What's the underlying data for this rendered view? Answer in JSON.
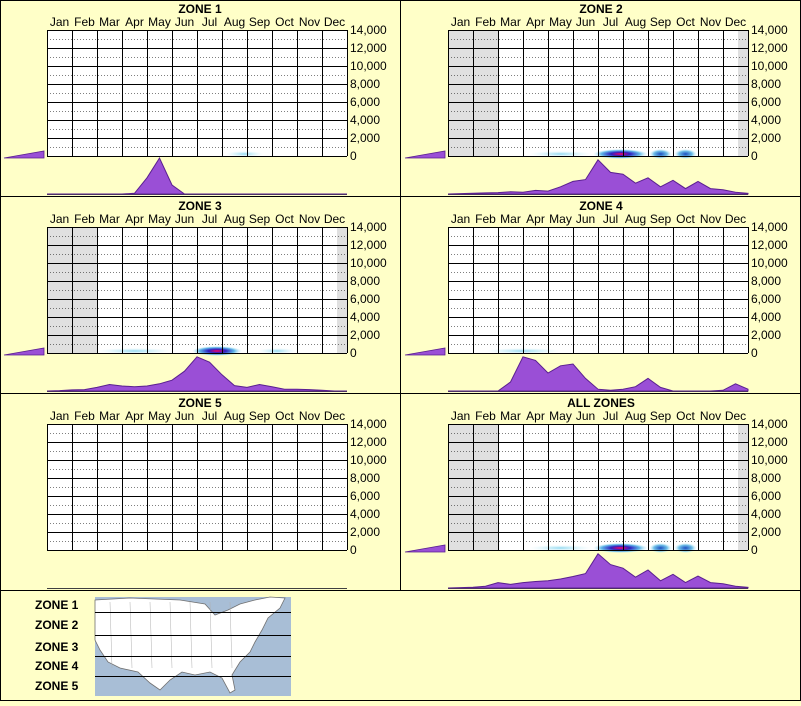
{
  "months": [
    "Jan",
    "Feb",
    "Mar",
    "Apr",
    "May",
    "Jun",
    "Jul",
    "Aug",
    "Sep",
    "Oct",
    "Nov",
    "Dec"
  ],
  "y_ticks": [
    "14,000",
    "12,000",
    "10,000",
    "8,000",
    "6,000",
    "4,000",
    "2,000",
    "0"
  ],
  "colors": {
    "background": "#ffffc8",
    "border": "#000000",
    "plot_bg": "#ffffff",
    "shade": "#e0e0e0",
    "density_fill": "#9a4fd6",
    "density_stroke": "#5a1f90",
    "heat_low": "#c8f0f8",
    "heat_mid": "#2a7ad0",
    "heat_high": "#ff0060"
  },
  "chart_data": [
    {
      "type": "heatmap",
      "title": "ZONE 1",
      "shaded_months": [],
      "density": [
        0,
        0,
        0,
        0,
        0,
        0,
        0,
        0.02,
        0.45,
        1.0,
        0.25,
        0.0,
        0,
        0,
        0,
        0,
        0,
        0,
        0,
        0,
        0,
        0,
        0,
        0,
        0
      ],
      "heat": [
        {
          "month_pos": 7.9,
          "width": 1.5,
          "intensity": 0.2
        }
      ],
      "left_wedge": true
    },
    {
      "type": "heatmap",
      "title": "ZONE 2",
      "shaded_months": [
        0,
        1,
        11.6
      ],
      "density": [
        0,
        0.01,
        0.02,
        0.03,
        0.04,
        0.06,
        0.05,
        0.1,
        0.08,
        0.2,
        0.35,
        0.4,
        0.95,
        0.6,
        0.55,
        0.3,
        0.45,
        0.2,
        0.38,
        0.15,
        0.35,
        0.15,
        0.12,
        0.05,
        0.02
      ],
      "heat": [
        {
          "month_pos": 4.5,
          "width": 2.5,
          "intensity": 0.2
        },
        {
          "month_pos": 6.9,
          "width": 2.2,
          "intensity": 0.9
        },
        {
          "month_pos": 8.5,
          "width": 0.9,
          "intensity": 0.5
        },
        {
          "month_pos": 9.5,
          "width": 0.9,
          "intensity": 0.5
        }
      ],
      "left_wedge": true
    },
    {
      "type": "heatmap",
      "title": "ZONE 3",
      "shaded_months": [
        0,
        1,
        11.6
      ],
      "density": [
        0,
        0.01,
        0.03,
        0.04,
        0.1,
        0.18,
        0.14,
        0.12,
        0.14,
        0.2,
        0.3,
        0.55,
        0.95,
        0.8,
        0.45,
        0.15,
        0.1,
        0.18,
        0.12,
        0.05,
        0.05,
        0.04,
        0.02,
        0.0,
        0.0
      ],
      "heat": [
        {
          "month_pos": 3.5,
          "width": 3.0,
          "intensity": 0.2
        },
        {
          "month_pos": 6.8,
          "width": 2.0,
          "intensity": 0.9
        },
        {
          "month_pos": 9.2,
          "width": 1.5,
          "intensity": 0.25
        }
      ],
      "left_wedge": true
    },
    {
      "type": "heatmap",
      "title": "ZONE 4",
      "shaded_months": [],
      "density": [
        0,
        0,
        0,
        0,
        0,
        0.25,
        0.95,
        0.85,
        0.5,
        0.7,
        0.75,
        0.35,
        0.05,
        0.02,
        0.05,
        0.12,
        0.35,
        0.1,
        0,
        0,
        0,
        0,
        0.02,
        0.2,
        0.05
      ],
      "heat": [
        {
          "month_pos": 3.0,
          "width": 3.0,
          "intensity": 0.2
        }
      ],
      "left_wedge": true
    },
    {
      "type": "heatmap",
      "title": "ZONE 5",
      "shaded_months": [],
      "density": [],
      "heat": [],
      "left_wedge": false
    },
    {
      "type": "heatmap",
      "title": "ALL ZONES",
      "shaded_months": [
        0,
        1,
        11.6
      ],
      "density": [
        0,
        0.01,
        0.02,
        0.05,
        0.15,
        0.1,
        0.15,
        0.18,
        0.2,
        0.25,
        0.32,
        0.4,
        0.95,
        0.65,
        0.55,
        0.3,
        0.5,
        0.2,
        0.38,
        0.15,
        0.33,
        0.15,
        0.12,
        0.05,
        0.02
      ],
      "heat": [
        {
          "month_pos": 4.5,
          "width": 2.5,
          "intensity": 0.25
        },
        {
          "month_pos": 6.9,
          "width": 2.2,
          "intensity": 0.9
        },
        {
          "month_pos": 8.5,
          "width": 0.9,
          "intensity": 0.5
        },
        {
          "month_pos": 9.5,
          "width": 0.9,
          "intensity": 0.5
        }
      ],
      "left_wedge": true
    }
  ],
  "legend": {
    "zones": [
      "ZONE 1",
      "ZONE 2",
      "ZONE 3",
      "ZONE 4",
      "ZONE 5"
    ],
    "map_icon": "us-map-icon"
  }
}
